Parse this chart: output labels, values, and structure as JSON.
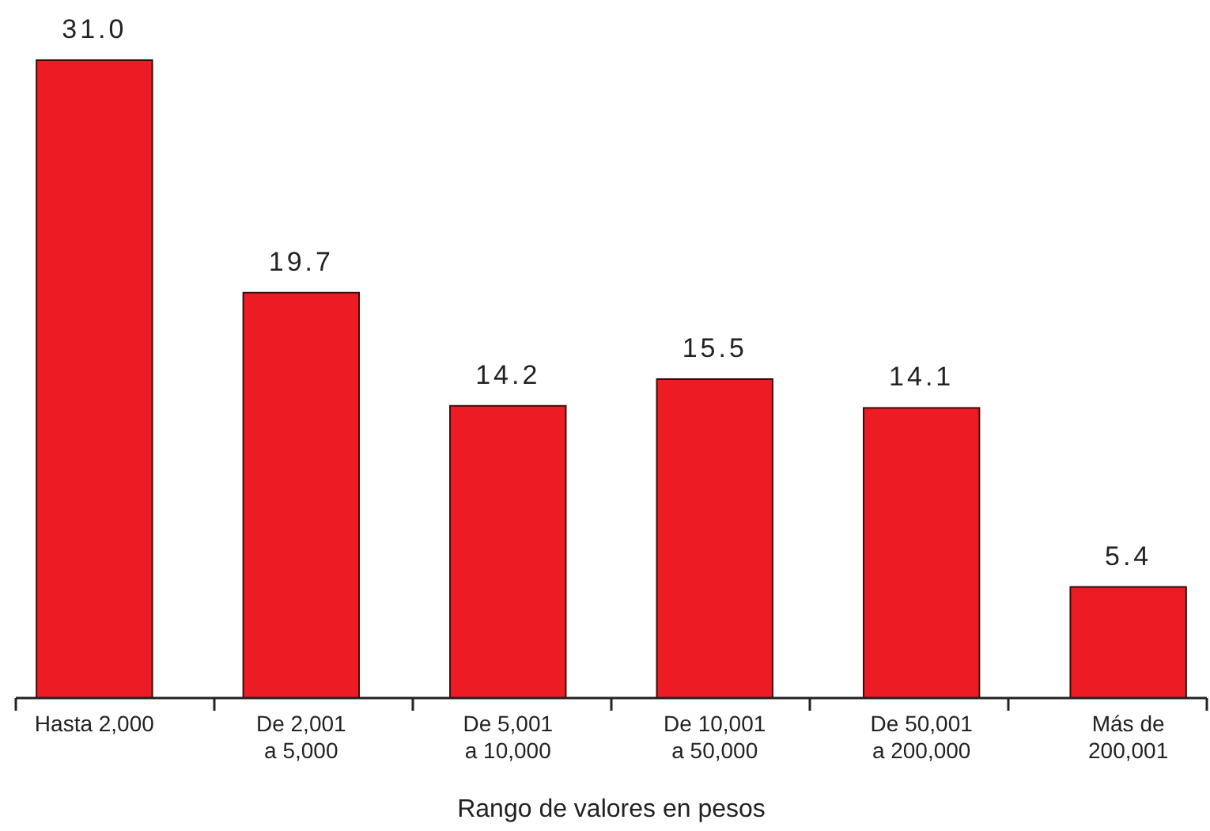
{
  "chart_data": {
    "type": "bar",
    "xlabel": "Rango de valores en pesos",
    "categories": [
      "Hasta 2,000",
      "De 2,001\na 5,000",
      "De 5,001\na 10,000",
      "De 10,001\na 50,000",
      "De 50,001\na 200,000",
      "Más de\n200,001"
    ],
    "values": [
      31.0,
      19.7,
      14.2,
      15.5,
      14.1,
      5.4
    ],
    "value_labels": [
      "31.0",
      "19.7",
      "14.2",
      "15.5",
      "14.1",
      "5.4"
    ],
    "color": "#ed1c24"
  }
}
